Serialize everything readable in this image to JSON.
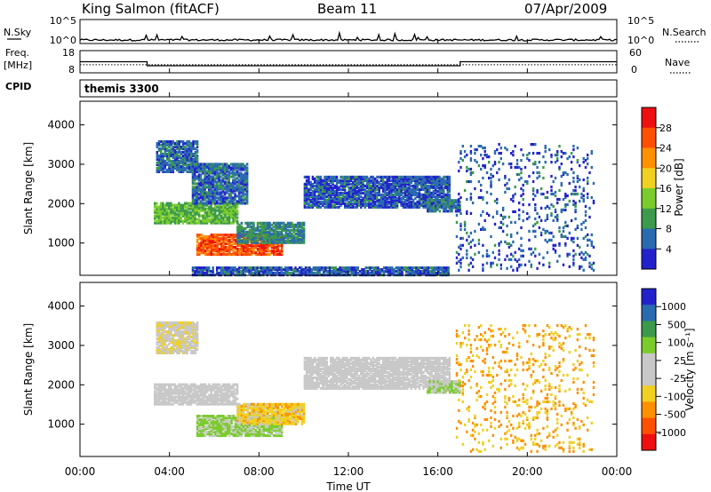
{
  "header": {
    "station": "King Salmon (fitACF)",
    "beam": "Beam 11",
    "date": "07/Apr/2009"
  },
  "noise_panel": {
    "left_label": "N.Sky",
    "right_label": "N.Search",
    "left_ticks": [
      "10^5",
      "10^0"
    ],
    "right_ticks": [
      "10^5",
      "10^0"
    ]
  },
  "freq_panel": {
    "left_label_line1": "Freq.",
    "left_label_line2": "[MHz]",
    "left_ticks": [
      "18",
      "8"
    ],
    "right_ticks": [
      "60",
      "0"
    ],
    "right_label": "Nave",
    "freq_step_times": [
      0,
      3.0,
      17.0,
      24
    ],
    "freq_levels": [
      13,
      11.2,
      13
    ],
    "nave_level": 22
  },
  "cpid": {
    "label": "CPID",
    "program": "themis 3300"
  },
  "xaxis": {
    "label": "Time UT",
    "ticks": [
      "00:00",
      "04:00",
      "08:00",
      "12:00",
      "16:00",
      "20:00",
      "00:00"
    ],
    "range_hours": [
      0,
      24
    ]
  },
  "colors": {
    "power": [
      "#2222cc",
      "#2a6ab0",
      "#3c9a4a",
      "#7acc2a",
      "#f0d020",
      "#ff9000",
      "#ff5000",
      "#ee1010"
    ],
    "velocity": [
      "#2222cc",
      "#2a6ab0",
      "#3c9a4a",
      "#7acc2a",
      "#c8c8c8",
      "#c8c8c8",
      "#f0d020",
      "#ff9000",
      "#ff5000",
      "#ee1010"
    ]
  },
  "chart_data": [
    {
      "type": "heatmap",
      "name": "power-panel",
      "ylabel": "Slant Range [km]",
      "yticks": [
        "1000",
        "2000",
        "3000",
        "4000"
      ],
      "ylim": [
        180,
        4600
      ],
      "xlim": [
        0,
        24
      ],
      "colorbar_label": "Power [dB]",
      "colorbar_ticks": [
        "4",
        "8",
        "12",
        "16",
        "20",
        "24",
        "28"
      ],
      "colorbar_range": [
        0,
        32
      ],
      "regions": [
        {
          "t0": 3.3,
          "t1": 7.0,
          "r0": 1500,
          "r1": 2000,
          "value": 12
        },
        {
          "t0": 5.2,
          "t1": 9.0,
          "r0": 700,
          "r1": 1200,
          "value": 26
        },
        {
          "t0": 7.0,
          "t1": 10.0,
          "r0": 1000,
          "r1": 1500,
          "value": 8
        },
        {
          "t0": 3.4,
          "t1": 5.2,
          "r0": 2800,
          "r1": 3600,
          "value": 6
        },
        {
          "t0": 5.0,
          "t1": 7.5,
          "r0": 2000,
          "r1": 3000,
          "value": 6
        },
        {
          "t0": 10.0,
          "t1": 16.5,
          "r0": 1900,
          "r1": 2700,
          "value": 5
        },
        {
          "t0": 15.5,
          "t1": 17.0,
          "r0": 1800,
          "r1": 2100,
          "value": 6
        },
        {
          "t0": 5.0,
          "t1": 16.5,
          "r0": 180,
          "r1": 400,
          "value": 5
        },
        {
          "t0": 16.8,
          "t1": 23.0,
          "r0": 300,
          "r1": 3500,
          "value": 5
        }
      ]
    },
    {
      "type": "heatmap",
      "name": "velocity-panel",
      "ylabel": "Slant Range [km]",
      "yticks": [
        "1000",
        "2000",
        "3000",
        "4000"
      ],
      "ylim": [
        180,
        4600
      ],
      "xlim": [
        0,
        24
      ],
      "colorbar_label": "Velocity [m s⁻¹]",
      "colorbar_ticks": [
        "1000",
        "500",
        "100",
        "25",
        "-25",
        "-100",
        "-500",
        "-1000"
      ],
      "colorbar_range": [
        -1000,
        1000
      ],
      "regions": [
        {
          "t0": 3.3,
          "t1": 7.0,
          "r0": 1500,
          "r1": 2000,
          "value": 0
        },
        {
          "t0": 5.2,
          "t1": 9.0,
          "r0": 700,
          "r1": 1200,
          "value": 250
        },
        {
          "t0": 7.0,
          "t1": 10.0,
          "r0": 1000,
          "r1": 1500,
          "value": -300
        },
        {
          "t0": 3.4,
          "t1": 5.2,
          "r0": 2800,
          "r1": 3600,
          "value": -150
        },
        {
          "t0": 10.0,
          "t1": 16.5,
          "r0": 1900,
          "r1": 2700,
          "value": 0
        },
        {
          "t0": 15.5,
          "t1": 17.0,
          "r0": 1800,
          "r1": 2100,
          "value": 200
        },
        {
          "t0": 16.8,
          "t1": 23.0,
          "r0": 300,
          "r1": 3500,
          "value": -400
        }
      ]
    }
  ]
}
